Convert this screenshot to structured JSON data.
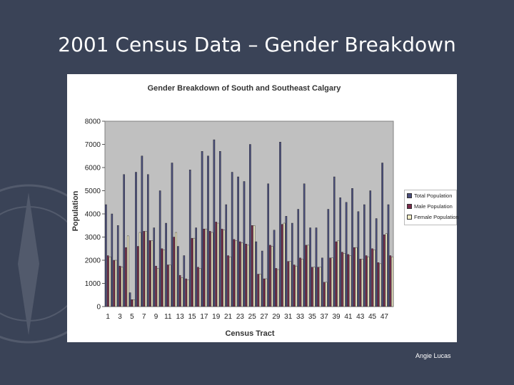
{
  "slide": {
    "title": "2001 Census Data – Gender Breakdown",
    "author": "Angie Lucas",
    "background_color": "#3a4357"
  },
  "chart_data": {
    "type": "bar",
    "title": "Gender Breakdown of South and Southeast Calgary",
    "xlabel": "Census Tract",
    "ylabel": "Population",
    "ylim": [
      0,
      8000
    ],
    "yticks": [
      0,
      1000,
      2000,
      3000,
      4000,
      5000,
      6000,
      7000,
      8000
    ],
    "xtick_labels": [
      "1",
      "3",
      "5",
      "7",
      "9",
      "11",
      "13",
      "15",
      "17",
      "19",
      "21",
      "23",
      "25",
      "27",
      "29",
      "31",
      "33",
      "35",
      "37",
      "39",
      "41",
      "43",
      "45",
      "47"
    ],
    "categories": [
      "1",
      "2",
      "3",
      "4",
      "5",
      "6",
      "7",
      "8",
      "9",
      "10",
      "11",
      "12",
      "13",
      "14",
      "15",
      "16",
      "17",
      "18",
      "19",
      "20",
      "21",
      "22",
      "23",
      "24",
      "25",
      "26",
      "27",
      "28",
      "29",
      "30",
      "31",
      "32",
      "33",
      "34",
      "35",
      "36",
      "37",
      "38",
      "39",
      "40",
      "41",
      "42",
      "43",
      "44",
      "45",
      "46",
      "47",
      "48"
    ],
    "grid": false,
    "legend_position": "right",
    "series": [
      {
        "name": "Total Population",
        "color": "#4a4e7c",
        "values": [
          4400,
          4000,
          3500,
          5700,
          600,
          5800,
          6500,
          5700,
          3400,
          5000,
          3600,
          6200,
          2600,
          2200,
          5900,
          3400,
          6700,
          6500,
          7200,
          6700,
          4400,
          5800,
          5600,
          5400,
          7000,
          2800,
          2400,
          5300,
          3300,
          7100,
          3900,
          3600,
          4200,
          5300,
          3400,
          3400,
          2100,
          4200,
          5600,
          4700,
          4500,
          5100,
          4100,
          4400,
          5000,
          3800,
          6200,
          4400
        ]
      },
      {
        "name": "Male Population",
        "color": "#7a2a4a",
        "values": [
          2200,
          2000,
          1750,
          2550,
          300,
          2600,
          3250,
          2850,
          1750,
          2500,
          1800,
          3000,
          1350,
          1200,
          2950,
          1700,
          3350,
          3250,
          3650,
          3350,
          2200,
          2900,
          2800,
          2700,
          3500,
          1400,
          1200,
          2650,
          1650,
          3550,
          1950,
          1800,
          2100,
          2650,
          1700,
          1700,
          1050,
          2100,
          2800,
          2350,
          2250,
          2550,
          2050,
          2200,
          2500,
          1900,
          3100,
          2200
        ]
      },
      {
        "name": "Female Population",
        "color": "#f5efc8",
        "values": [
          2150,
          2000,
          1700,
          3050,
          300,
          3200,
          3250,
          2850,
          1650,
          2450,
          1800,
          3200,
          1250,
          1150,
          2950,
          1650,
          3350,
          3200,
          3600,
          3300,
          2150,
          2850,
          2750,
          2650,
          3500,
          1400,
          1200,
          2600,
          1600,
          3600,
          1950,
          1750,
          2050,
          2650,
          1700,
          1700,
          1050,
          2100,
          2850,
          2300,
          2200,
          2550,
          2050,
          2150,
          2450,
          1850,
          3150,
          2150
        ]
      }
    ]
  }
}
